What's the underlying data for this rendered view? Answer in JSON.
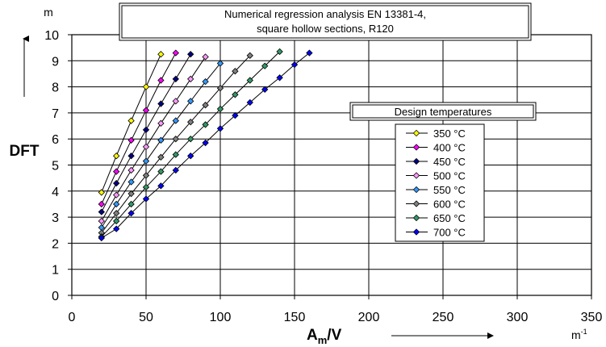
{
  "chart_data": {
    "type": "line",
    "title_lines": [
      "Numerical regression analysis EN 13381-4,",
      "square hollow sections, R120"
    ],
    "ylabel": "DFT",
    "y_unit": "m",
    "xlabel_main": "A",
    "xlabel_sub": "m",
    "xlabel_tail": "/V",
    "x_unit_base": "m",
    "x_unit_exp": "-1",
    "xlim": [
      0,
      350
    ],
    "ylim": [
      0,
      10
    ],
    "x_ticks": [
      "0",
      "50",
      "100",
      "150",
      "200",
      "250",
      "300",
      "350"
    ],
    "y_ticks": [
      "0",
      "1",
      "2",
      "3",
      "4",
      "5",
      "6",
      "7",
      "8",
      "9",
      "10"
    ],
    "grid": true,
    "legend_title": "Design temperatures",
    "legend_position": "right",
    "series": [
      {
        "name": "350 °C",
        "color": "#ffff00",
        "marker": "diamond",
        "x": [
          20,
          30,
          40,
          50,
          60
        ],
        "y": [
          3.95,
          5.35,
          6.7,
          8.0,
          9.25
        ]
      },
      {
        "name": "400 °C",
        "color": "#ff00ff",
        "marker": "diamond",
        "x": [
          20,
          30,
          40,
          50,
          60,
          70
        ],
        "y": [
          3.5,
          4.75,
          5.95,
          7.1,
          8.25,
          9.3
        ]
      },
      {
        "name": "450 °C",
        "color": "#000080",
        "marker": "diamond",
        "x": [
          20,
          30,
          40,
          50,
          60,
          70,
          80
        ],
        "y": [
          3.2,
          4.3,
          5.35,
          6.35,
          7.35,
          8.3,
          9.25
        ]
      },
      {
        "name": "500 °C",
        "color": "#ff99ff",
        "marker": "diamond",
        "x": [
          20,
          30,
          40,
          50,
          60,
          70,
          80,
          90
        ],
        "y": [
          2.85,
          3.85,
          4.8,
          5.7,
          6.6,
          7.45,
          8.3,
          9.15
        ]
      },
      {
        "name": "550 °C",
        "color": "#3399ff",
        "marker": "diamond",
        "x": [
          20,
          30,
          40,
          50,
          60,
          70,
          80,
          90,
          100
        ],
        "y": [
          2.6,
          3.5,
          4.35,
          5.15,
          5.95,
          6.7,
          7.45,
          8.2,
          8.9
        ]
      },
      {
        "name": "600 °C",
        "color": "#808080",
        "marker": "diamond",
        "x": [
          20,
          30,
          40,
          50,
          60,
          70,
          80,
          90,
          100,
          110,
          120
        ],
        "y": [
          2.4,
          3.15,
          3.9,
          4.6,
          5.3,
          6.0,
          6.65,
          7.3,
          7.95,
          8.6,
          9.2
        ]
      },
      {
        "name": "650 °C",
        "color": "#339966",
        "marker": "diamond",
        "x": [
          20,
          30,
          40,
          50,
          60,
          70,
          80,
          90,
          100,
          110,
          120,
          130,
          140
        ],
        "y": [
          2.25,
          2.85,
          3.5,
          4.15,
          4.75,
          5.4,
          6.0,
          6.55,
          7.15,
          7.7,
          8.25,
          8.8,
          9.35
        ]
      },
      {
        "name": "700 °C",
        "color": "#0000ff",
        "marker": "diamond",
        "x": [
          20,
          30,
          40,
          50,
          60,
          70,
          80,
          90,
          100,
          110,
          120,
          130,
          140,
          150,
          160
        ],
        "y": [
          2.2,
          2.55,
          3.15,
          3.7,
          4.2,
          4.8,
          5.35,
          5.85,
          6.4,
          6.9,
          7.4,
          7.9,
          8.35,
          8.85,
          9.3
        ]
      }
    ]
  }
}
